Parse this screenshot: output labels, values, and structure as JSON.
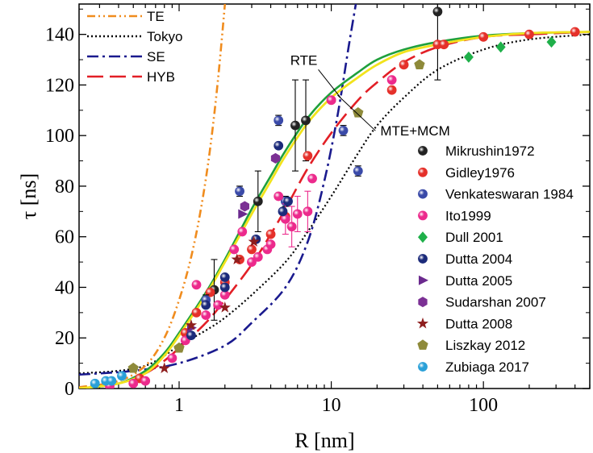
{
  "chart_data": {
    "type": "scatter",
    "xlabel": "R [nm]",
    "ylabel": "τ [ns]",
    "xscale": "log",
    "xlim": [
      0.22,
      500
    ],
    "ylim": [
      0,
      152
    ],
    "x_ticks": [
      1,
      10,
      100
    ],
    "x_tick_labels": [
      "1",
      "10",
      "100"
    ],
    "y_ticks": [
      0,
      20,
      40,
      60,
      80,
      100,
      120,
      140
    ],
    "y_tick_labels": [
      "0",
      "20",
      "40",
      "60",
      "80",
      "100",
      "120",
      "140"
    ],
    "grid": false,
    "legend_placement": "top-left (models) and right (data)",
    "models": [
      {
        "name": "TE",
        "color": "#f08c1e",
        "dash": "10,4,2,4,2,4",
        "points": [
          [
            0.22,
            0.5
          ],
          [
            0.4,
            3
          ],
          [
            0.6,
            9
          ],
          [
            0.8,
            20
          ],
          [
            1.0,
            35
          ],
          [
            1.2,
            52
          ],
          [
            1.4,
            72
          ],
          [
            1.6,
            95
          ],
          [
            1.8,
            122
          ],
          [
            2.0,
            152
          ]
        ]
      },
      {
        "name": "Tokyo",
        "color": "#000000",
        "dash": "2,3",
        "points": [
          [
            0.22,
            6
          ],
          [
            0.4,
            7
          ],
          [
            0.6,
            9
          ],
          [
            0.8,
            13
          ],
          [
            1,
            17
          ],
          [
            1.5,
            23
          ],
          [
            2,
            28
          ],
          [
            3,
            37
          ],
          [
            5,
            50
          ],
          [
            7,
            62
          ],
          [
            10,
            76
          ],
          [
            15,
            93
          ],
          [
            20,
            104
          ],
          [
            30,
            115
          ],
          [
            50,
            126
          ],
          [
            100,
            134
          ],
          [
            200,
            138
          ],
          [
            500,
            140
          ]
        ]
      },
      {
        "name": "SE",
        "color": "#1a1a8e",
        "dash": "14,5,3,5",
        "points": [
          [
            0.22,
            5.5
          ],
          [
            0.5,
            7
          ],
          [
            1,
            10
          ],
          [
            2,
            17
          ],
          [
            3,
            26
          ],
          [
            5,
            40
          ],
          [
            7,
            58
          ],
          [
            9,
            82
          ],
          [
            11,
            108
          ],
          [
            13,
            135
          ],
          [
            14.5,
            152
          ]
        ]
      },
      {
        "name": "HYB",
        "color": "#e21f26",
        "dash": "20,8",
        "points": [
          [
            0.22,
            0
          ],
          [
            0.4,
            2
          ],
          [
            0.6,
            6
          ],
          [
            0.8,
            11
          ],
          [
            1,
            16
          ],
          [
            1.5,
            26
          ],
          [
            2,
            35
          ],
          [
            3,
            49
          ],
          [
            4,
            61
          ],
          [
            5,
            71
          ],
          [
            7,
            87
          ],
          [
            10,
            101
          ],
          [
            15,
            114
          ],
          [
            20,
            121
          ],
          [
            30,
            129
          ],
          [
            50,
            135
          ],
          [
            100,
            139
          ],
          [
            200,
            140
          ],
          [
            500,
            141
          ]
        ]
      },
      {
        "name": "RTE",
        "color": "#1fa03c",
        "dash": "",
        "points": [
          [
            0.22,
            0
          ],
          [
            0.4,
            2
          ],
          [
            0.6,
            7
          ],
          [
            0.8,
            14
          ],
          [
            1,
            22
          ],
          [
            1.5,
            38
          ],
          [
            2,
            51
          ],
          [
            3,
            71
          ],
          [
            4,
            84
          ],
          [
            5,
            94
          ],
          [
            7,
            107
          ],
          [
            10,
            117
          ],
          [
            15,
            125
          ],
          [
            20,
            130
          ],
          [
            30,
            134
          ],
          [
            50,
            137
          ],
          [
            100,
            139.5
          ],
          [
            200,
            140.5
          ],
          [
            500,
            141
          ]
        ]
      },
      {
        "name": "MTE+MCM",
        "color": "#f2e31c",
        "dash": "",
        "points": [
          [
            0.22,
            0
          ],
          [
            0.4,
            2
          ],
          [
            0.6,
            6
          ],
          [
            0.8,
            13
          ],
          [
            1,
            21
          ],
          [
            1.5,
            37
          ],
          [
            2,
            50
          ],
          [
            3,
            69
          ],
          [
            4,
            82
          ],
          [
            5,
            92
          ],
          [
            7,
            105
          ],
          [
            10,
            115
          ],
          [
            15,
            123
          ],
          [
            20,
            128
          ],
          [
            30,
            133
          ],
          [
            50,
            136
          ],
          [
            100,
            139
          ],
          [
            200,
            140.5
          ],
          [
            500,
            141
          ]
        ]
      }
    ],
    "annotations": [
      {
        "text": "RTE",
        "x": 6.6,
        "y": 128,
        "arrow_to_x": 11.5,
        "arrow_to_y": 115
      },
      {
        "text": "MTE+MCM",
        "x": 21,
        "y": 100,
        "arrow_to_x": 11,
        "arrow_to_y": 116
      }
    ],
    "series": [
      {
        "name": "Mikrushin1972",
        "marker": "sphere",
        "color": "#222222",
        "points": [
          [
            1.7,
            39
          ],
          [
            3.3,
            74
          ],
          [
            5.8,
            104
          ],
          [
            6.8,
            106
          ],
          [
            50,
            149
          ]
        ],
        "errors": [
          12,
          12,
          18,
          16,
          27
        ]
      },
      {
        "name": "Gidley1976",
        "marker": "sphere",
        "color": "#e5302a",
        "points": [
          [
            0.55,
            4
          ],
          [
            1.1,
            22
          ],
          [
            1.3,
            30
          ],
          [
            1.6,
            38
          ],
          [
            2,
            42
          ],
          [
            2.5,
            51
          ],
          [
            3,
            55
          ],
          [
            4,
            61
          ],
          [
            5,
            68
          ],
          [
            7,
            92
          ],
          [
            10,
            114
          ],
          [
            25,
            118
          ],
          [
            30,
            128
          ],
          [
            50,
            136
          ],
          [
            55,
            136
          ],
          [
            100,
            139
          ],
          [
            200,
            140
          ],
          [
            400,
            141
          ]
        ]
      },
      {
        "name": "Venkateswaran 1984",
        "marker": "sphere",
        "color": "#3a4aa8",
        "points": [
          [
            1.5,
            35
          ],
          [
            2.5,
            78
          ],
          [
            4.5,
            106
          ],
          [
            5,
            74
          ],
          [
            12,
            102
          ],
          [
            15,
            86
          ]
        ],
        "errors": [
          2,
          2,
          2,
          2,
          2,
          2
        ]
      },
      {
        "name": "Ito1999",
        "marker": "sphere",
        "color": "#ec2a8c",
        "points": [
          [
            0.35,
            1
          ],
          [
            0.5,
            2
          ],
          [
            0.6,
            3
          ],
          [
            0.9,
            12
          ],
          [
            1.1,
            19
          ],
          [
            1.3,
            41
          ],
          [
            1.5,
            29
          ],
          [
            1.8,
            33
          ],
          [
            2,
            37
          ],
          [
            2.3,
            55
          ],
          [
            2.6,
            62
          ],
          [
            3,
            50
          ],
          [
            3.3,
            52
          ],
          [
            3.8,
            55
          ],
          [
            4,
            57
          ],
          [
            4.5,
            76
          ],
          [
            5,
            67
          ],
          [
            5.5,
            64
          ],
          [
            6,
            69
          ],
          [
            7,
            70
          ],
          [
            7.5,
            83
          ],
          [
            10,
            114
          ],
          [
            25,
            122
          ]
        ],
        "errors": [
          0,
          0,
          0,
          0,
          0,
          0,
          0,
          0,
          0,
          0,
          0,
          0,
          0,
          0,
          0,
          0,
          6,
          8,
          7,
          8,
          0,
          0,
          0
        ]
      },
      {
        "name": "Dull 2001",
        "marker": "diamond",
        "color": "#1fb04a",
        "points": [
          [
            80,
            131
          ],
          [
            130,
            135
          ],
          [
            280,
            137
          ]
        ]
      },
      {
        "name": "Dutta 2004",
        "marker": "sphere",
        "color": "#1b2a7a",
        "points": [
          [
            1.2,
            21
          ],
          [
            1.5,
            33
          ],
          [
            2,
            40
          ],
          [
            2,
            44
          ],
          [
            3.2,
            59
          ],
          [
            4.5,
            96
          ],
          [
            4.8,
            70
          ],
          [
            5.2,
            74
          ]
        ]
      },
      {
        "name": "Dutta 2005",
        "marker": "triangle-right",
        "color": "#6b2a8e",
        "points": [
          [
            1.2,
            24
          ],
          [
            2.6,
            69
          ]
        ]
      },
      {
        "name": "Sudarshan 2007",
        "marker": "hexagon",
        "color": "#7b3094",
        "points": [
          [
            2.7,
            72
          ],
          [
            4.3,
            91
          ]
        ]
      },
      {
        "name": "Dutta 2008",
        "marker": "star",
        "color": "#8e1e1e",
        "points": [
          [
            0.8,
            8
          ],
          [
            1.2,
            25
          ],
          [
            2,
            32
          ],
          [
            2.4,
            51
          ],
          [
            3.1,
            58
          ]
        ]
      },
      {
        "name": "Liszkay 2012",
        "marker": "pentagon",
        "color": "#8e8a3a",
        "points": [
          [
            0.5,
            8
          ],
          [
            1,
            16
          ],
          [
            15,
            109
          ],
          [
            38,
            128
          ]
        ]
      },
      {
        "name": "Zubiaga 2017",
        "marker": "sphere",
        "color": "#2aa0d8",
        "points": [
          [
            0.28,
            2
          ],
          [
            0.33,
            3
          ],
          [
            0.36,
            3
          ],
          [
            0.42,
            5
          ]
        ]
      }
    ]
  }
}
